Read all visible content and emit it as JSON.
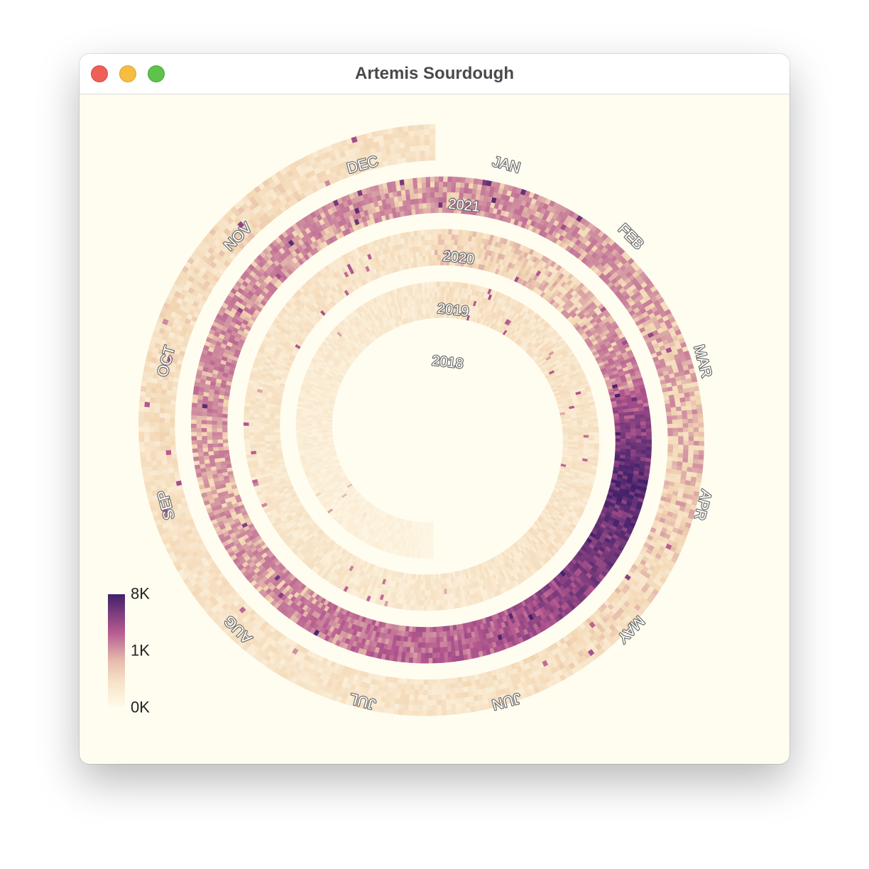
{
  "window": {
    "title": "Artemis Sourdough"
  },
  "colors": {
    "background": "#fffdf0",
    "scale": [
      "#fffaea",
      "#f3d7b4",
      "#b5588f",
      "#42206a"
    ]
  },
  "chart_data": {
    "type": "heatmap",
    "layout": "spiral",
    "month_labels": [
      "JAN",
      "FEB",
      "MAR",
      "APR",
      "MAY",
      "JUN",
      "JUL",
      "AUG",
      "SEP",
      "OCT",
      "NOV",
      "DEC"
    ],
    "years": [
      "2018",
      "2019",
      "2020",
      "2021"
    ],
    "color_scale": {
      "ticks": [
        "8K",
        "1K",
        "0K"
      ],
      "domain": [
        0,
        1000,
        8000
      ]
    },
    "monthly_levels_note": "approximate typical value per month, read from the colours",
    "monthly_levels": {
      "2018": [
        0,
        0,
        0,
        0,
        0,
        0,
        150,
        180,
        220,
        260,
        300,
        330
      ],
      "2019": [
        450,
        420,
        400,
        380,
        420,
        350,
        330,
        350,
        360,
        380,
        420,
        430
      ],
      "2020": [
        600,
        700,
        1300,
        6000,
        3500,
        1900,
        1600,
        1100,
        900,
        1200,
        1100,
        1000
      ],
      "2021": [
        1100,
        1000,
        900,
        700,
        550,
        450,
        400,
        420,
        450,
        500,
        550,
        450
      ]
    }
  }
}
